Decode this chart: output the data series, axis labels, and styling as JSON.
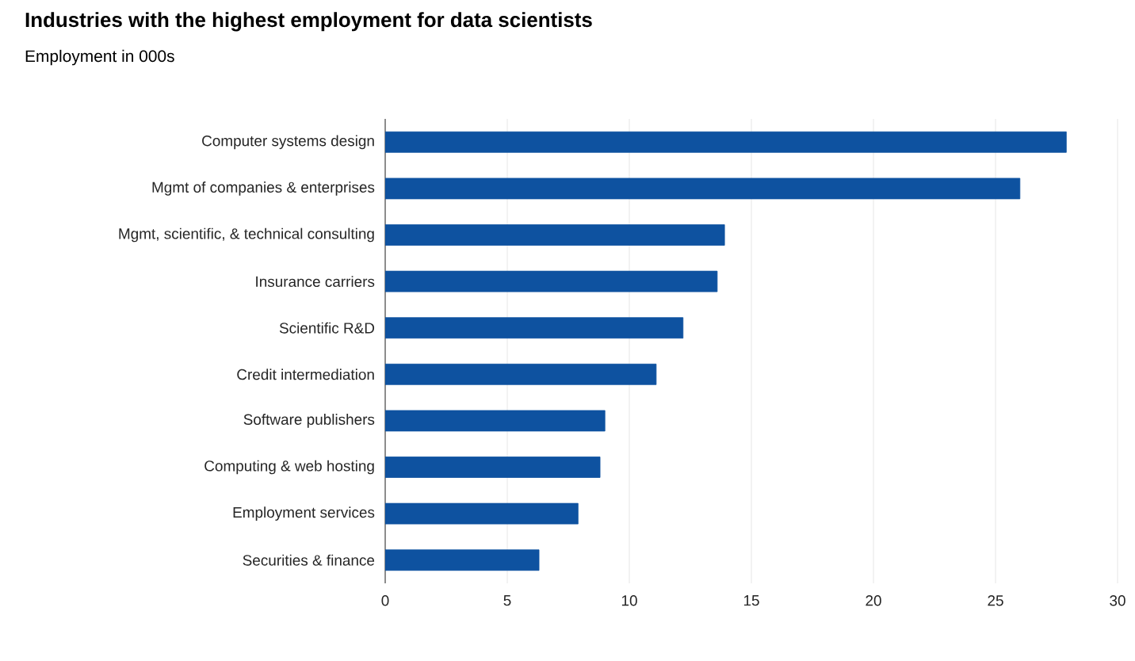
{
  "chart_data": {
    "type": "bar",
    "orientation": "horizontal",
    "title": "Industries with the highest employment for data scientists",
    "subtitle": "Employment in 000s",
    "categories": [
      "Computer systems design",
      "Mgmt of companies & enterprises",
      "Mgmt, scientific, & technical consulting",
      "Insurance carriers",
      "Scientific R&D",
      "Credit intermediation",
      "Software publishers",
      "Computing & web hosting",
      "Employment services",
      "Securities & finance"
    ],
    "values": [
      27.9,
      26.0,
      13.9,
      13.6,
      12.2,
      11.1,
      9.0,
      8.8,
      7.9,
      6.3
    ],
    "color": "#0e52a0",
    "xlim": [
      0,
      30
    ],
    "xticks": [
      0,
      5,
      10,
      15,
      20,
      25,
      30
    ],
    "grid": "x"
  }
}
